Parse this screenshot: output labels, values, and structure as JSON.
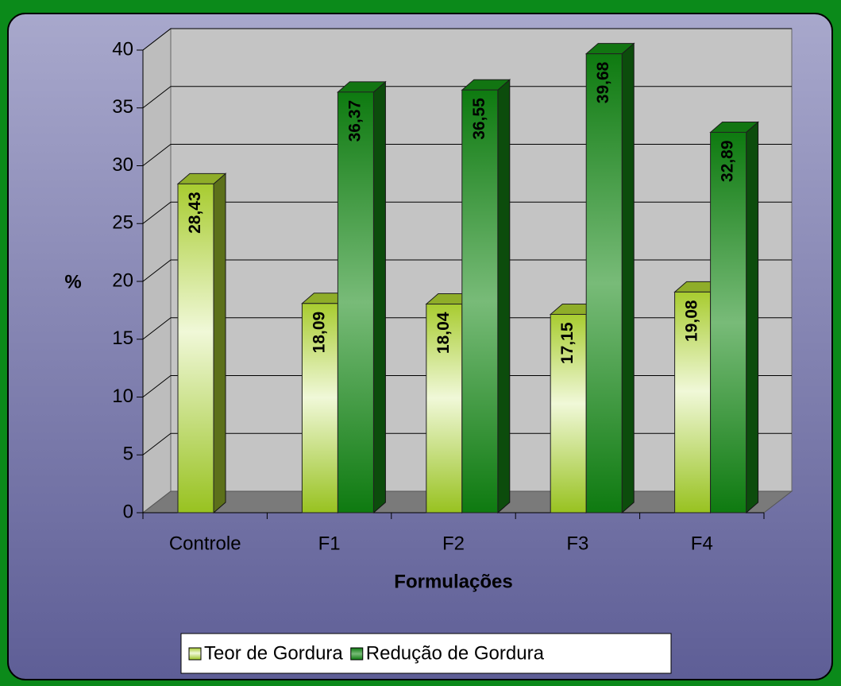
{
  "chart_data": {
    "type": "bar3d",
    "categories": [
      "Controle",
      "F1",
      "F2",
      "F3",
      "F4"
    ],
    "series": [
      {
        "name": "Teor de Gordura",
        "color": "#a8cc30",
        "values": [
          28.43,
          18.09,
          18.04,
          17.15,
          19.08
        ],
        "value_labels": [
          "28,43",
          "18,09",
          "18,04",
          "17,15",
          "19,08"
        ]
      },
      {
        "name": "Redução de Gordura",
        "color": "#158a15",
        "values": [
          null,
          36.37,
          36.55,
          39.68,
          32.89
        ],
        "value_labels": [
          null,
          "36,37",
          "36,55",
          "39,68",
          "32,89"
        ]
      }
    ],
    "ylabel": "%",
    "xlabel": "Formulações",
    "ylim": [
      0,
      40
    ],
    "yticks": [
      0,
      5,
      10,
      15,
      20,
      25,
      30,
      35,
      40
    ],
    "grid": true,
    "legend": "bottom"
  }
}
